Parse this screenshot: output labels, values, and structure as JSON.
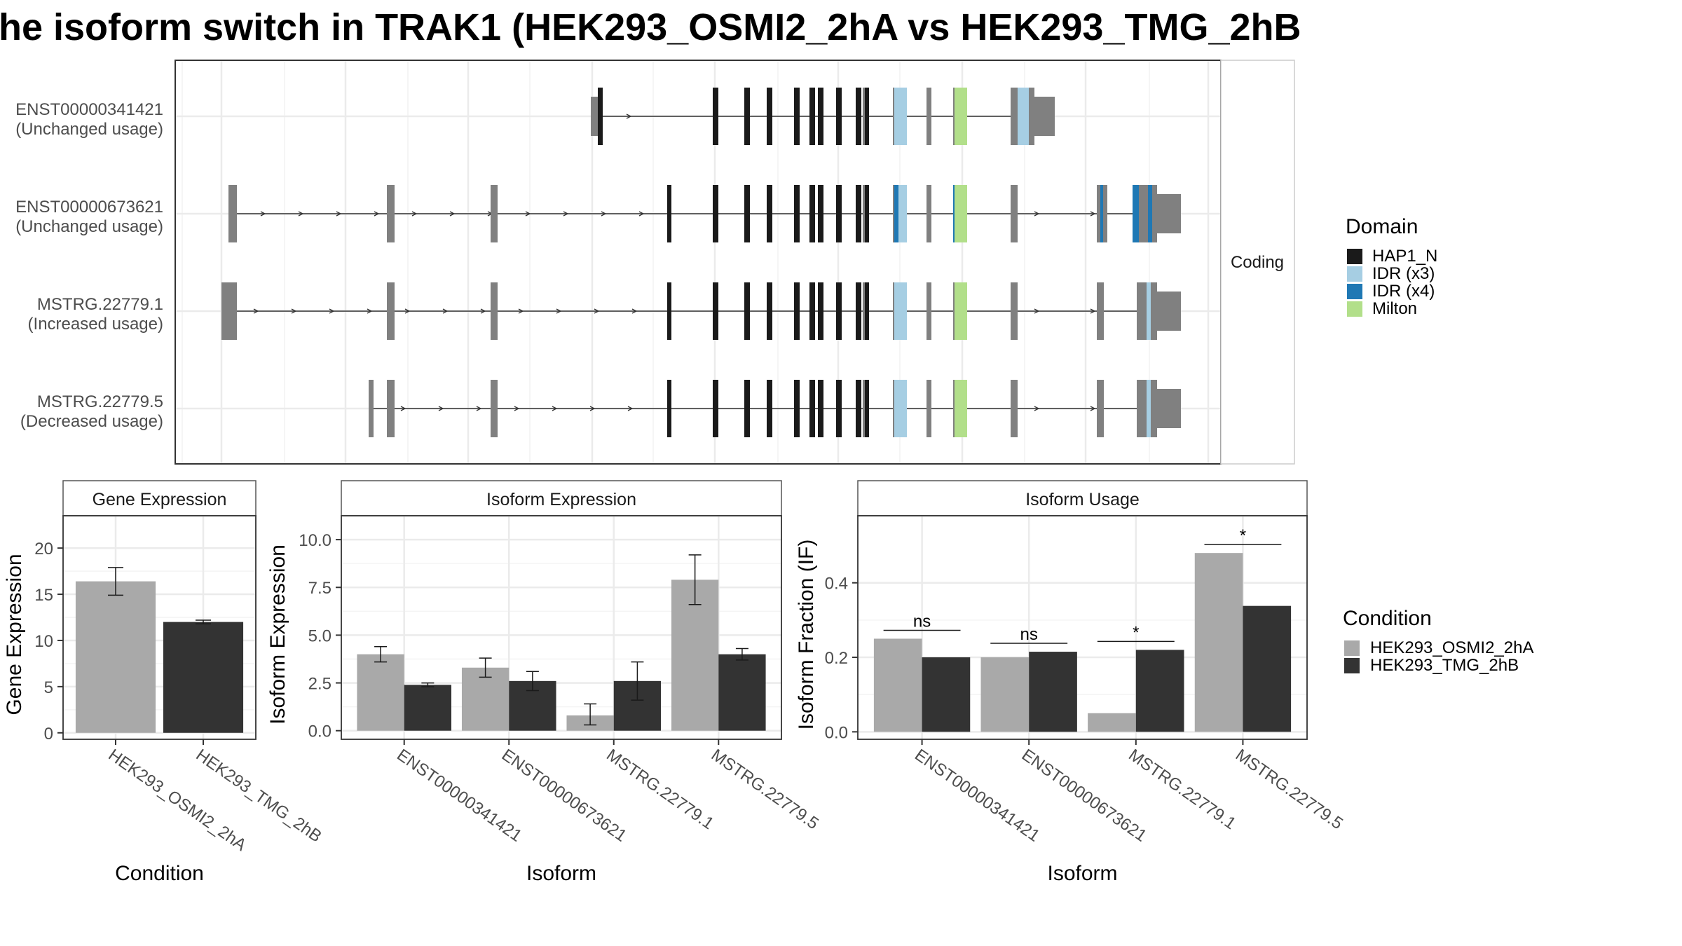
{
  "title": "he isoform switch in TRAK1 (HEK293_OSMI2_2hA vs HEK293_TMG_2hB",
  "colors": {
    "exon": "#808080",
    "HAP1_N": "#1a1a1a",
    "IDR_x3": "#a6cee3",
    "IDR_x4": "#1f78b4",
    "Milton": "#b2df8a",
    "cond_a": "#a9a9a9",
    "cond_b": "#333333"
  },
  "structure": {
    "strip_label": "Coding",
    "isoforms": [
      {
        "id": "ENST00000341421",
        "usage": "(Unchanged usage)"
      },
      {
        "id": "ENST00000673621",
        "usage": "(Unchanged usage)"
      },
      {
        "id": "MSTRG.22779.1",
        "usage": "(Increased usage)"
      },
      {
        "id": "MSTRG.22779.5",
        "usage": "(Decreased usage)"
      }
    ],
    "legend": {
      "title": "Domain",
      "items": [
        {
          "label": "HAP1_N",
          "color": "#1a1a1a"
        },
        {
          "label": "IDR (x3)",
          "color": "#a6cee3"
        },
        {
          "label": "IDR (x4)",
          "color": "#1f78b4"
        },
        {
          "label": "Milton",
          "color": "#b2df8a"
        }
      ]
    }
  },
  "chart_data": [
    {
      "type": "bar",
      "title": "Gene Expression",
      "xlabel": "Condition",
      "ylabel": "Gene Expression",
      "categories": [
        "HEK293_OSMI2_2hA",
        "HEK293_TMG_2hB"
      ],
      "values": [
        16.4,
        12.0
      ],
      "errors": [
        [
          14.9,
          17.9
        ],
        [
          11.8,
          12.2
        ]
      ],
      "yticks": [
        "0",
        "5",
        "10",
        "15",
        "20"
      ],
      "ylim": [
        -0.7,
        23.5
      ]
    },
    {
      "type": "bar",
      "title": "Isoform Expression",
      "xlabel": "Isoform",
      "ylabel": "Isoform Expression",
      "categories": [
        "ENST00000341421",
        "ENST00000673621",
        "MSTRG.22779.1",
        "MSTRG.22779.5"
      ],
      "series": [
        {
          "name": "HEK293_OSMI2_2hA",
          "values": [
            4.0,
            3.3,
            0.8,
            7.9
          ],
          "errors": [
            [
              3.6,
              4.4
            ],
            [
              2.8,
              3.8
            ],
            [
              0.3,
              1.4
            ],
            [
              6.6,
              9.2
            ]
          ]
        },
        {
          "name": "HEK293_TMG_2hB",
          "values": [
            2.4,
            2.6,
            2.6,
            4.0
          ],
          "errors": [
            [
              2.3,
              2.5
            ],
            [
              2.1,
              3.1
            ],
            [
              1.6,
              3.6
            ],
            [
              3.7,
              4.3
            ]
          ]
        }
      ],
      "yticks": [
        "0.0",
        "2.5",
        "5.0",
        "7.5",
        "10.0"
      ],
      "ylim": [
        -0.45,
        11.25
      ]
    },
    {
      "type": "bar",
      "title": "Isoform Usage",
      "xlabel": "Isoform",
      "ylabel": "Isoform Fraction (IF)",
      "categories": [
        "ENST00000341421",
        "ENST00000673621",
        "MSTRG.22779.1",
        "MSTRG.22779.5"
      ],
      "series": [
        {
          "name": "HEK293_OSMI2_2hA",
          "values": [
            0.25,
            0.2,
            0.05,
            0.48
          ]
        },
        {
          "name": "HEK293_TMG_2hB",
          "values": [
            0.2,
            0.215,
            0.22,
            0.338
          ]
        }
      ],
      "significance": [
        "ns",
        "ns",
        "*",
        "*"
      ],
      "yticks": [
        "0.0",
        "0.2",
        "0.4"
      ],
      "ylim": [
        -0.02,
        0.58
      ]
    }
  ],
  "condition_legend": {
    "title": "Condition",
    "items": [
      {
        "label": "HEK293_OSMI2_2hA",
        "color": "#a9a9a9"
      },
      {
        "label": "HEK293_TMG_2hB",
        "color": "#333333"
      }
    ]
  }
}
